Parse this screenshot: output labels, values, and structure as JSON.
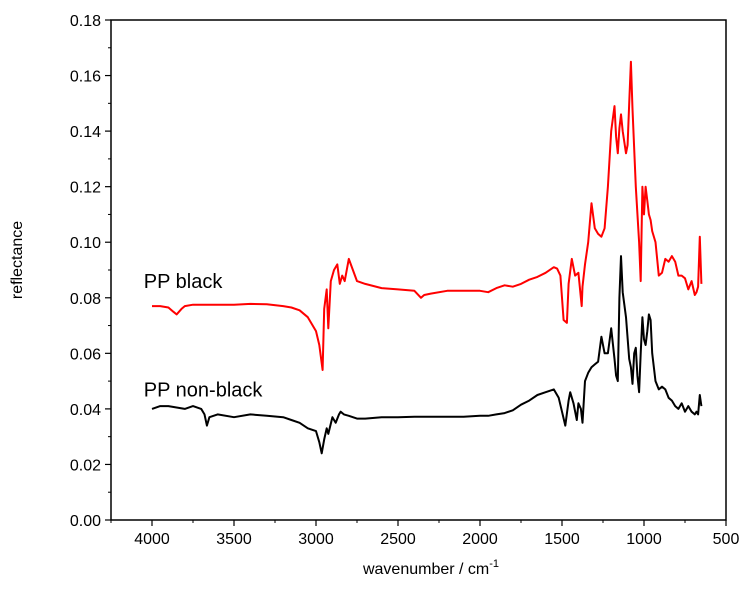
{
  "chart_data": {
    "type": "line",
    "xlabel": "wavenumber / cm",
    "xlabel_sup": "-1",
    "ylabel": "reflectance",
    "xlim": [
      4250,
      500
    ],
    "ylim": [
      0.0,
      0.18
    ],
    "x_ticks": [
      4000,
      3500,
      3000,
      2500,
      2000,
      1500,
      1000,
      500
    ],
    "x_tick_labels": [
      "4000",
      "3500",
      "3000",
      "2500",
      "2000",
      "1500",
      "1000",
      "500"
    ],
    "y_ticks": [
      0.0,
      0.02,
      0.04,
      0.06,
      0.08,
      0.1,
      0.12,
      0.14,
      0.16,
      0.18
    ],
    "y_tick_labels": [
      "0.00",
      "0.02",
      "0.04",
      "0.06",
      "0.08",
      "0.10",
      "0.12",
      "0.14",
      "0.16",
      "0.18"
    ],
    "grid": false,
    "series": [
      {
        "color": "#ff0000",
        "x": [
          4000,
          3950,
          3900,
          3870,
          3850,
          3820,
          3800,
          3750,
          3700,
          3600,
          3500,
          3400,
          3300,
          3200,
          3150,
          3100,
          3050,
          3000,
          2980,
          2960,
          2950,
          2935,
          2925,
          2910,
          2890,
          2870,
          2855,
          2840,
          2825,
          2800,
          2750,
          2700,
          2600,
          2500,
          2400,
          2360,
          2340,
          2300,
          2200,
          2100,
          2000,
          1950,
          1900,
          1850,
          1800,
          1750,
          1700,
          1650,
          1600,
          1550,
          1530,
          1510,
          1490,
          1470,
          1460,
          1440,
          1420,
          1400,
          1380,
          1375,
          1360,
          1340,
          1320,
          1300,
          1280,
          1260,
          1240,
          1220,
          1200,
          1180,
          1170,
          1160,
          1150,
          1140,
          1130,
          1110,
          1100,
          1090,
          1080,
          1070,
          1050,
          1030,
          1020,
          1010,
          1000,
          990,
          980,
          970,
          960,
          950,
          930,
          910,
          890,
          870,
          850,
          830,
          810,
          790,
          770,
          750,
          730,
          710,
          690,
          680,
          670,
          660,
          650
        ],
        "y": [
          0.077,
          0.077,
          0.0765,
          0.075,
          0.074,
          0.076,
          0.077,
          0.0775,
          0.0775,
          0.0775,
          0.0775,
          0.0778,
          0.0777,
          0.077,
          0.0765,
          0.0755,
          0.073,
          0.068,
          0.063,
          0.054,
          0.076,
          0.083,
          0.069,
          0.086,
          0.09,
          0.092,
          0.085,
          0.088,
          0.086,
          0.094,
          0.086,
          0.085,
          0.0835,
          0.083,
          0.0825,
          0.08,
          0.081,
          0.0815,
          0.0825,
          0.0825,
          0.0825,
          0.082,
          0.0835,
          0.0845,
          0.084,
          0.085,
          0.0865,
          0.0875,
          0.089,
          0.091,
          0.0905,
          0.088,
          0.072,
          0.071,
          0.085,
          0.094,
          0.088,
          0.089,
          0.077,
          0.084,
          0.092,
          0.1,
          0.114,
          0.105,
          0.103,
          0.102,
          0.105,
          0.12,
          0.14,
          0.149,
          0.138,
          0.132,
          0.141,
          0.146,
          0.14,
          0.132,
          0.135,
          0.15,
          0.165,
          0.148,
          0.12,
          0.1,
          0.086,
          0.12,
          0.11,
          0.12,
          0.115,
          0.11,
          0.108,
          0.104,
          0.1,
          0.088,
          0.089,
          0.094,
          0.093,
          0.095,
          0.093,
          0.088,
          0.088,
          0.087,
          0.083,
          0.086,
          0.081,
          0.082,
          0.084,
          0.102,
          0.085
        ]
      },
      {
        "color": "#000000",
        "x": [
          4000,
          3950,
          3900,
          3850,
          3800,
          3750,
          3700,
          3680,
          3665,
          3650,
          3600,
          3500,
          3400,
          3300,
          3200,
          3150,
          3100,
          3050,
          3000,
          2980,
          2965,
          2950,
          2935,
          2925,
          2900,
          2880,
          2860,
          2850,
          2830,
          2800,
          2750,
          2700,
          2600,
          2500,
          2400,
          2300,
          2200,
          2100,
          2000,
          1950,
          1900,
          1850,
          1800,
          1750,
          1700,
          1650,
          1600,
          1550,
          1520,
          1500,
          1480,
          1460,
          1450,
          1430,
          1410,
          1400,
          1385,
          1375,
          1360,
          1340,
          1320,
          1300,
          1280,
          1260,
          1240,
          1220,
          1200,
          1180,
          1170,
          1160,
          1150,
          1140,
          1130,
          1110,
          1090,
          1080,
          1070,
          1060,
          1050,
          1040,
          1030,
          1020,
          1010,
          1000,
          990,
          980,
          970,
          960,
          950,
          930,
          910,
          890,
          870,
          850,
          830,
          810,
          790,
          770,
          750,
          730,
          710,
          690,
          680,
          670,
          660,
          650
        ],
        "y": [
          0.04,
          0.041,
          0.041,
          0.0405,
          0.04,
          0.041,
          0.04,
          0.038,
          0.034,
          0.037,
          0.038,
          0.037,
          0.038,
          0.0375,
          0.037,
          0.036,
          0.035,
          0.033,
          0.032,
          0.028,
          0.024,
          0.029,
          0.033,
          0.031,
          0.037,
          0.035,
          0.038,
          0.039,
          0.038,
          0.0375,
          0.0365,
          0.0365,
          0.037,
          0.037,
          0.0372,
          0.0372,
          0.0372,
          0.0372,
          0.0375,
          0.0375,
          0.038,
          0.0385,
          0.0395,
          0.0415,
          0.043,
          0.045,
          0.046,
          0.047,
          0.044,
          0.039,
          0.034,
          0.043,
          0.046,
          0.042,
          0.036,
          0.042,
          0.04,
          0.035,
          0.05,
          0.053,
          0.055,
          0.056,
          0.057,
          0.066,
          0.06,
          0.06,
          0.069,
          0.058,
          0.052,
          0.05,
          0.08,
          0.095,
          0.082,
          0.073,
          0.058,
          0.055,
          0.049,
          0.06,
          0.062,
          0.052,
          0.046,
          0.06,
          0.073,
          0.065,
          0.063,
          0.068,
          0.074,
          0.072,
          0.06,
          0.05,
          0.047,
          0.048,
          0.047,
          0.044,
          0.043,
          0.041,
          0.04,
          0.042,
          0.039,
          0.041,
          0.039,
          0.038,
          0.039,
          0.038,
          0.045,
          0.041
        ]
      }
    ],
    "annotations": [
      {
        "text": "PP black",
        "x": 4050,
        "y": 0.0835
      },
      {
        "text": "PP non-black",
        "x": 4050,
        "y": 0.0445
      }
    ]
  }
}
